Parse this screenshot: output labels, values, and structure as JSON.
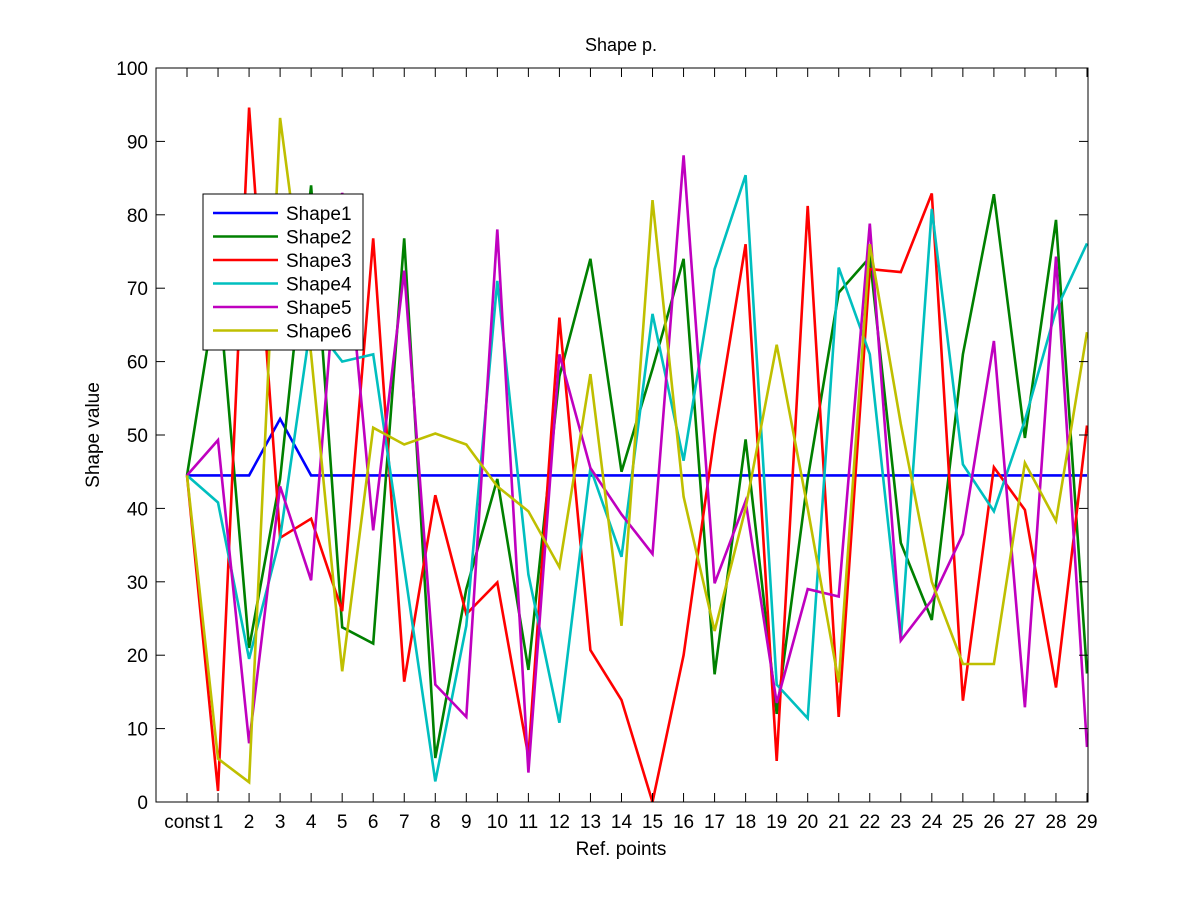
{
  "chart_data": {
    "type": "line",
    "title": "Shape p.",
    "xlabel": "Ref. points",
    "ylabel": "Shape value",
    "categories": [
      "const",
      "1",
      "2",
      "3",
      "4",
      "5",
      "6",
      "7",
      "8",
      "9",
      "10",
      "11",
      "12",
      "13",
      "14",
      "15",
      "16",
      "17",
      "18",
      "19",
      "20",
      "21",
      "22",
      "23",
      "24",
      "25",
      "26",
      "27",
      "28",
      "29"
    ],
    "ylim": [
      0,
      100
    ],
    "yticks": [
      0,
      10,
      20,
      30,
      40,
      50,
      60,
      70,
      80,
      90,
      100
    ],
    "grid": false,
    "legend_position": "upper-left",
    "series": [
      {
        "name": "Shape1",
        "color": "#0000ff",
        "values": [
          44.5,
          44.5,
          44.5,
          52.2,
          44.5,
          44.5,
          44.5,
          44.5,
          44.5,
          44.5,
          44.5,
          44.5,
          44.5,
          44.5,
          44.5,
          44.5,
          44.5,
          44.5,
          44.5,
          44.5,
          44.5,
          44.5,
          44.5,
          44.5,
          44.5,
          44.5,
          44.5,
          44.5,
          44.5,
          44.5
        ]
      },
      {
        "name": "Shape2",
        "color": "#008000",
        "values": [
          44.5,
          71,
          21,
          44,
          84,
          23.8,
          21.6,
          76.8,
          6,
          29,
          44,
          18,
          58,
          74,
          45,
          59,
          74,
          17.4,
          49.4,
          12,
          44,
          69.4,
          74.2,
          35.3,
          24.8,
          61,
          82.8,
          49.6,
          79.3,
          17.5
        ]
      },
      {
        "name": "Shape3",
        "color": "#ff0000",
        "values": [
          44.5,
          1.5,
          94.6,
          36,
          38.6,
          26,
          76.8,
          16.4,
          41.8,
          25.6,
          29.9,
          6.2,
          66,
          20.7,
          13.9,
          0,
          20,
          50,
          76,
          5.6,
          81.2,
          11.6,
          72.6,
          72.2,
          82.9,
          13.8,
          45.6,
          39.8,
          15.6,
          51.3
        ]
      },
      {
        "name": "Shape4",
        "color": "#00bfbf",
        "values": [
          44.5,
          40.8,
          19.5,
          36,
          65.5,
          60,
          61,
          32,
          2.8,
          24,
          71,
          31,
          10.8,
          45.5,
          33.4,
          66.5,
          46.5,
          72.6,
          85.4,
          16,
          11.4,
          72.8,
          61,
          22,
          80.8,
          46,
          39.6,
          52,
          67,
          76.1
        ]
      },
      {
        "name": "Shape5",
        "color": "#bf00bf",
        "values": [
          44.5,
          49.3,
          8,
          43,
          30.2,
          83,
          37,
          72.4,
          16,
          11.6,
          78,
          4,
          61,
          45.5,
          39.2,
          33.8,
          88.1,
          29.8,
          41,
          13.5,
          29,
          28,
          78.8,
          22,
          27.5,
          36.5,
          62.8,
          12.9,
          74.3,
          7.5
        ]
      },
      {
        "name": "Shape6",
        "color": "#bfbf00",
        "values": [
          44.5,
          5.9,
          2.7,
          93.2,
          61,
          17.8,
          51,
          48.7,
          50.2,
          48.7,
          43,
          39.6,
          32,
          58.3,
          24,
          82,
          41.6,
          23.3,
          40,
          62.3,
          40,
          16.3,
          76,
          51.5,
          30,
          18.8,
          18.8,
          46.2,
          38.3,
          64
        ]
      }
    ]
  }
}
